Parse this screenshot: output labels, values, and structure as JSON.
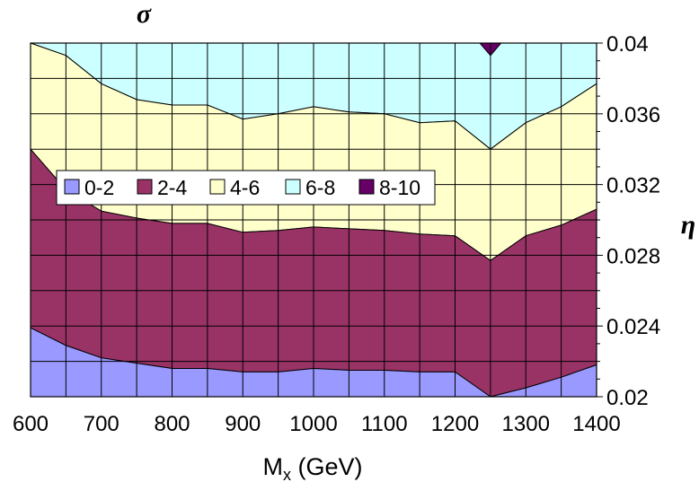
{
  "chart_data": {
    "type": "area",
    "title": "σ",
    "xlabel": "M",
    "xlabel_sub": "x",
    "xlabel_unit": " (GeV)",
    "ylabel": "η",
    "x": [
      600,
      650,
      700,
      750,
      800,
      850,
      900,
      950,
      1000,
      1050,
      1100,
      1150,
      1200,
      1250,
      1300,
      1350,
      1400
    ],
    "x_tick_labels": [
      "600",
      "700",
      "800",
      "900",
      "1000",
      "1100",
      "1200",
      "1300",
      "1400"
    ],
    "x_ticks": [
      600,
      700,
      800,
      900,
      1000,
      1100,
      1200,
      1300,
      1400
    ],
    "xlim": [
      600,
      1400
    ],
    "ylim": [
      0.02,
      0.04
    ],
    "y_ticks": [
      0.02,
      0.024,
      0.028,
      0.032,
      0.036,
      0.04
    ],
    "y_tick_labels": [
      "0.02",
      "0.024",
      "0.028",
      "0.032",
      "0.036",
      "0.04"
    ],
    "grid": "on",
    "legend_position": "left",
    "series": [
      {
        "name": "0-2",
        "color": "#9999ff",
        "lower": [
          0.02,
          0.02,
          0.02,
          0.02,
          0.02,
          0.02,
          0.02,
          0.02,
          0.02,
          0.02,
          0.02,
          0.02,
          0.02,
          0.02,
          0.02,
          0.02,
          0.02
        ],
        "upper": [
          0.0239,
          0.0229,
          0.0222,
          0.0219,
          0.0216,
          0.0216,
          0.0214,
          0.0214,
          0.0216,
          0.0215,
          0.0215,
          0.0214,
          0.0214,
          0.02,
          0.0205,
          0.0211,
          0.0218
        ]
      },
      {
        "name": "2-4",
        "color": "#993366",
        "upper": [
          0.034,
          0.0317,
          0.0305,
          0.0301,
          0.0298,
          0.0298,
          0.0293,
          0.0294,
          0.0296,
          0.0295,
          0.0294,
          0.0292,
          0.0291,
          0.0277,
          0.0291,
          0.0297,
          0.0306
        ]
      },
      {
        "name": "4-6",
        "color": "#ffffcc",
        "upper": [
          0.04,
          0.0393,
          0.0377,
          0.0368,
          0.0365,
          0.0365,
          0.0357,
          0.036,
          0.0364,
          0.0361,
          0.036,
          0.0355,
          0.0356,
          0.034,
          0.0355,
          0.0364,
          0.0377
        ]
      },
      {
        "name": "6-8",
        "color": "#ccffff",
        "upper": [
          0.04,
          0.04,
          0.04,
          0.04,
          0.04,
          0.04,
          0.04,
          0.04,
          0.04,
          0.04,
          0.04,
          0.04,
          0.04,
          0.04,
          0.04,
          0.04,
          0.04
        ]
      },
      {
        "name": "8-10",
        "color": "#660066",
        "region": {
          "x": [
            1235,
            1250,
            1265
          ],
          "lower": [
            0.04,
            0.0393,
            0.04
          ],
          "upper": [
            0.04,
            0.04,
            0.04
          ]
        }
      }
    ]
  }
}
